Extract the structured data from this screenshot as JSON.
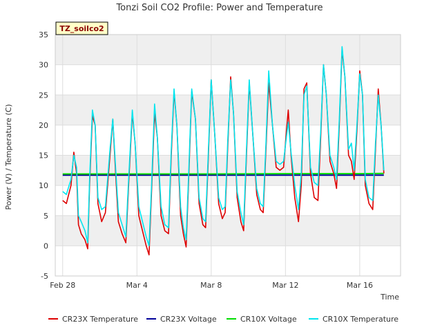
{
  "chart_data": {
    "type": "line",
    "title": "Tonzi Soil CO2 Profile: Power and Temperature",
    "xlabel": "Time",
    "ylabel": "Power (V) / Temperature (C)",
    "site_tag": "TZ_soilco2",
    "ylim": [
      -5,
      35
    ],
    "yticks": [
      -5,
      0,
      5,
      10,
      15,
      20,
      25,
      30,
      35
    ],
    "xlim": [
      -0.4,
      18.2
    ],
    "xticks": [
      {
        "value": 0,
        "label": "Feb 28"
      },
      {
        "value": 4,
        "label": "Mar 4"
      },
      {
        "value": 8,
        "label": "Mar 8"
      },
      {
        "value": 12,
        "label": "Mar 12"
      },
      {
        "value": 16,
        "label": "Mar 16"
      }
    ],
    "x_unit": "days since Feb 28",
    "grid": true,
    "legend_position": "bottom",
    "series": [
      {
        "name": "CR23X Temperature",
        "color": "#dd0000",
        "points": [
          [
            0.0,
            7.5
          ],
          [
            0.2,
            7.0
          ],
          [
            0.45,
            10.0
          ],
          [
            0.6,
            15.5
          ],
          [
            0.75,
            12.0
          ],
          [
            0.85,
            3.5
          ],
          [
            1.0,
            2.0
          ],
          [
            1.2,
            1.0
          ],
          [
            1.35,
            -0.5
          ],
          [
            1.45,
            10.0
          ],
          [
            1.6,
            21.5
          ],
          [
            1.75,
            20.0
          ],
          [
            1.9,
            7.0
          ],
          [
            2.1,
            4.0
          ],
          [
            2.3,
            5.5
          ],
          [
            2.55,
            15.0
          ],
          [
            2.7,
            21.0
          ],
          [
            2.85,
            12.0
          ],
          [
            3.0,
            4.0
          ],
          [
            3.2,
            2.0
          ],
          [
            3.4,
            0.5
          ],
          [
            3.55,
            10.0
          ],
          [
            3.75,
            22.0
          ],
          [
            3.9,
            17.0
          ],
          [
            4.1,
            5.0
          ],
          [
            4.3,
            2.5
          ],
          [
            4.5,
            0.0
          ],
          [
            4.65,
            -1.5
          ],
          [
            4.8,
            10.0
          ],
          [
            4.95,
            22.0
          ],
          [
            5.1,
            18.0
          ],
          [
            5.3,
            5.0
          ],
          [
            5.5,
            2.5
          ],
          [
            5.7,
            2.0
          ],
          [
            5.85,
            15.0
          ],
          [
            6.0,
            25.5
          ],
          [
            6.15,
            20.0
          ],
          [
            6.35,
            5.0
          ],
          [
            6.5,
            2.0
          ],
          [
            6.65,
            -0.2
          ],
          [
            6.8,
            12.0
          ],
          [
            6.95,
            25.5
          ],
          [
            7.15,
            21.0
          ],
          [
            7.35,
            7.0
          ],
          [
            7.55,
            3.5
          ],
          [
            7.7,
            3.0
          ],
          [
            7.85,
            15.0
          ],
          [
            8.0,
            27.5
          ],
          [
            8.2,
            18.0
          ],
          [
            8.4,
            7.0
          ],
          [
            8.6,
            4.5
          ],
          [
            8.75,
            5.5
          ],
          [
            8.9,
            17.0
          ],
          [
            9.05,
            28.0
          ],
          [
            9.2,
            22.0
          ],
          [
            9.4,
            8.0
          ],
          [
            9.6,
            4.0
          ],
          [
            9.75,
            2.5
          ],
          [
            9.9,
            15.0
          ],
          [
            10.05,
            27.0
          ],
          [
            10.25,
            18.0
          ],
          [
            10.45,
            8.5
          ],
          [
            10.65,
            6.0
          ],
          [
            10.8,
            5.5
          ],
          [
            10.95,
            16.0
          ],
          [
            11.1,
            27.0
          ],
          [
            11.3,
            20.0
          ],
          [
            11.5,
            13.0
          ],
          [
            11.7,
            12.5
          ],
          [
            11.9,
            13.0
          ],
          [
            12.05,
            19.0
          ],
          [
            12.15,
            22.5
          ],
          [
            12.3,
            15.0
          ],
          [
            12.5,
            8.0
          ],
          [
            12.7,
            4.0
          ],
          [
            12.85,
            10.0
          ],
          [
            13.0,
            26.0
          ],
          [
            13.15,
            27.0
          ],
          [
            13.35,
            12.0
          ],
          [
            13.55,
            8.0
          ],
          [
            13.75,
            7.5
          ],
          [
            13.9,
            18.0
          ],
          [
            14.05,
            30.0
          ],
          [
            14.2,
            25.0
          ],
          [
            14.4,
            14.0
          ],
          [
            14.6,
            12.0
          ],
          [
            14.75,
            9.5
          ],
          [
            14.9,
            20.0
          ],
          [
            15.05,
            32.5
          ],
          [
            15.2,
            28.0
          ],
          [
            15.4,
            15.0
          ],
          [
            15.55,
            14.0
          ],
          [
            15.7,
            11.0
          ],
          [
            15.85,
            19.0
          ],
          [
            16.0,
            29.0
          ],
          [
            16.15,
            25.0
          ],
          [
            16.3,
            10.0
          ],
          [
            16.5,
            7.0
          ],
          [
            16.7,
            6.0
          ],
          [
            16.85,
            16.0
          ],
          [
            17.0,
            26.0
          ],
          [
            17.15,
            20.0
          ],
          [
            17.3,
            12.0
          ]
        ]
      },
      {
        "name": "CR23X Voltage",
        "color": "#000099",
        "points": [
          [
            0.0,
            11.7
          ],
          [
            4.0,
            11.7
          ],
          [
            8.0,
            11.7
          ],
          [
            12.0,
            11.7
          ],
          [
            16.0,
            11.7
          ],
          [
            17.3,
            11.7
          ]
        ]
      },
      {
        "name": "CR10X Voltage",
        "color": "#00dd00",
        "points": [
          [
            0.0,
            11.9
          ],
          [
            4.0,
            11.9
          ],
          [
            8.0,
            11.9
          ],
          [
            12.0,
            11.95
          ],
          [
            16.0,
            11.95
          ],
          [
            17.3,
            12.0
          ]
        ]
      },
      {
        "name": "CR10X Temperature",
        "color": "#00e5ee",
        "points": [
          [
            0.0,
            9.0
          ],
          [
            0.2,
            8.5
          ],
          [
            0.45,
            11.0
          ],
          [
            0.6,
            15.0
          ],
          [
            0.75,
            13.0
          ],
          [
            0.85,
            5.0
          ],
          [
            1.0,
            4.0
          ],
          [
            1.2,
            2.5
          ],
          [
            1.35,
            0.5
          ],
          [
            1.45,
            11.0
          ],
          [
            1.6,
            22.5
          ],
          [
            1.75,
            20.0
          ],
          [
            1.9,
            8.0
          ],
          [
            2.1,
            6.0
          ],
          [
            2.3,
            6.5
          ],
          [
            2.55,
            16.0
          ],
          [
            2.7,
            21.0
          ],
          [
            2.85,
            13.0
          ],
          [
            3.0,
            5.5
          ],
          [
            3.2,
            3.5
          ],
          [
            3.4,
            1.5
          ],
          [
            3.55,
            11.0
          ],
          [
            3.75,
            22.5
          ],
          [
            3.9,
            17.0
          ],
          [
            4.1,
            6.5
          ],
          [
            4.3,
            4.0
          ],
          [
            4.5,
            1.5
          ],
          [
            4.65,
            0.0
          ],
          [
            4.8,
            11.0
          ],
          [
            4.95,
            23.5
          ],
          [
            5.1,
            18.0
          ],
          [
            5.3,
            6.5
          ],
          [
            5.5,
            3.5
          ],
          [
            5.7,
            3.0
          ],
          [
            5.85,
            16.0
          ],
          [
            6.0,
            26.0
          ],
          [
            6.15,
            20.0
          ],
          [
            6.35,
            6.5
          ],
          [
            6.5,
            3.0
          ],
          [
            6.65,
            1.0
          ],
          [
            6.8,
            13.0
          ],
          [
            6.95,
            26.0
          ],
          [
            7.15,
            21.0
          ],
          [
            7.35,
            8.0
          ],
          [
            7.55,
            4.5
          ],
          [
            7.7,
            4.0
          ],
          [
            7.85,
            16.0
          ],
          [
            8.0,
            27.5
          ],
          [
            8.2,
            18.0
          ],
          [
            8.4,
            8.0
          ],
          [
            8.6,
            6.0
          ],
          [
            8.75,
            6.5
          ],
          [
            8.9,
            18.0
          ],
          [
            9.05,
            27.5
          ],
          [
            9.2,
            22.0
          ],
          [
            9.4,
            9.0
          ],
          [
            9.6,
            5.5
          ],
          [
            9.75,
            3.5
          ],
          [
            9.9,
            16.0
          ],
          [
            10.05,
            27.5
          ],
          [
            10.25,
            18.0
          ],
          [
            10.45,
            9.5
          ],
          [
            10.65,
            7.0
          ],
          [
            10.8,
            6.5
          ],
          [
            10.95,
            17.0
          ],
          [
            11.1,
            29.0
          ],
          [
            11.3,
            20.0
          ],
          [
            11.5,
            14.0
          ],
          [
            11.7,
            13.5
          ],
          [
            11.9,
            14.0
          ],
          [
            12.05,
            18.0
          ],
          [
            12.15,
            20.5
          ],
          [
            12.3,
            15.5
          ],
          [
            12.5,
            10.0
          ],
          [
            12.7,
            6.0
          ],
          [
            12.85,
            12.0
          ],
          [
            13.0,
            25.0
          ],
          [
            13.15,
            26.5
          ],
          [
            13.35,
            13.0
          ],
          [
            13.55,
            10.5
          ],
          [
            13.75,
            10.0
          ],
          [
            13.9,
            19.0
          ],
          [
            14.05,
            30.0
          ],
          [
            14.2,
            25.0
          ],
          [
            14.4,
            15.0
          ],
          [
            14.6,
            13.0
          ],
          [
            14.75,
            11.0
          ],
          [
            14.9,
            21.0
          ],
          [
            15.05,
            33.0
          ],
          [
            15.2,
            28.0
          ],
          [
            15.4,
            16.0
          ],
          [
            15.55,
            17.0
          ],
          [
            15.7,
            12.5
          ],
          [
            15.85,
            20.0
          ],
          [
            16.0,
            28.5
          ],
          [
            16.15,
            25.0
          ],
          [
            16.3,
            11.0
          ],
          [
            16.5,
            8.0
          ],
          [
            16.7,
            7.5
          ],
          [
            16.85,
            17.0
          ],
          [
            17.0,
            25.0
          ],
          [
            17.15,
            20.0
          ],
          [
            17.3,
            12.5
          ]
        ]
      }
    ]
  }
}
